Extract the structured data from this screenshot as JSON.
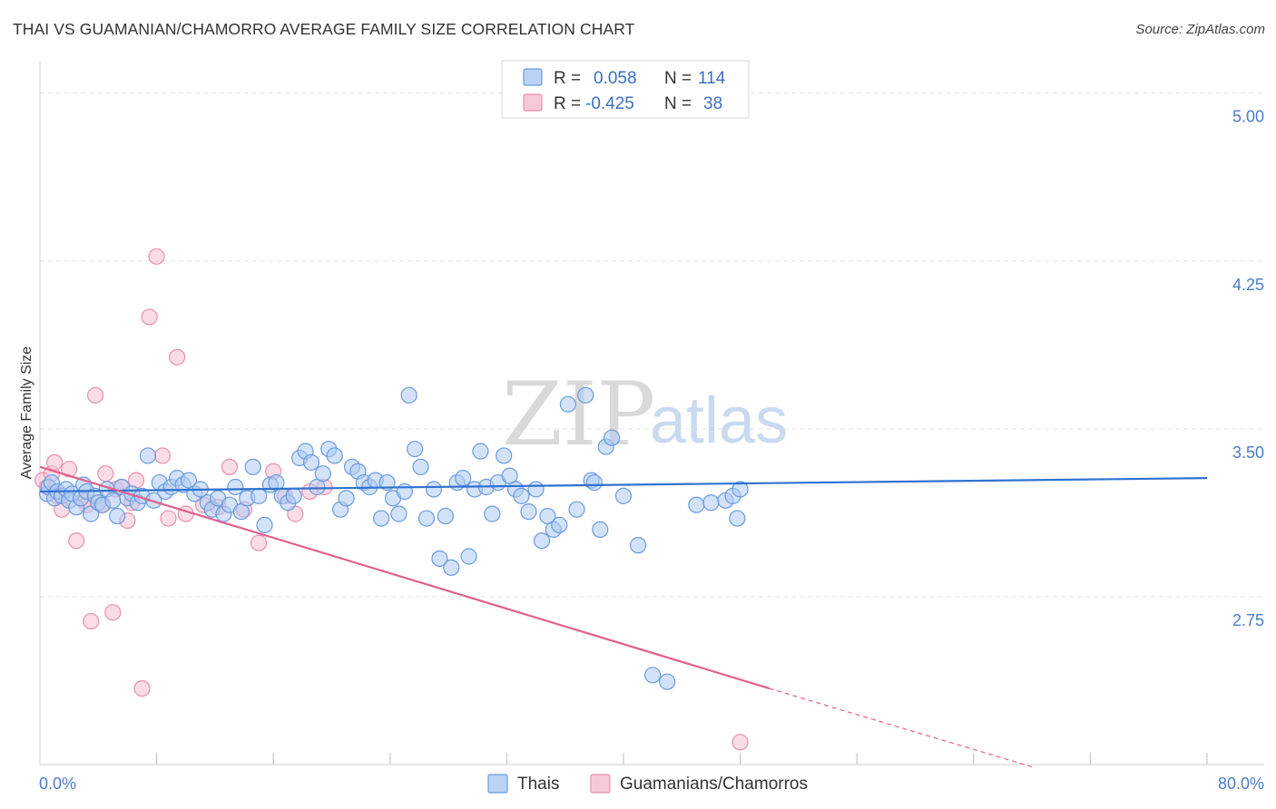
{
  "title": "THAI VS GUAMANIAN/CHAMORRO AVERAGE FAMILY SIZE CORRELATION CHART",
  "source": "Source: ZipAtlas.com",
  "watermark": {
    "zip": "ZIP",
    "atlas": "atlas"
  },
  "legend": {
    "r_label": "R =",
    "n_label": "N =",
    "thai_r": "0.058",
    "thai_n": "114",
    "guam_r": "-0.425",
    "guam_n": "38"
  },
  "bottom_legend": {
    "thai": "Thais",
    "guam": "Guamanians/Chamorros"
  },
  "colors": {
    "thai_fill": "#aecbf2",
    "thai_stroke": "#6a9be0",
    "thai_line": "#2f72d0",
    "guam_fill": "#f6c0d1",
    "guam_stroke": "#ea8fae",
    "guam_line": "#e0608e",
    "grid": "#e3e3e3",
    "tick_label": "#4a7cc9"
  },
  "chart_data": {
    "type": "scatter",
    "title": "THAI VS GUAMANIAN/CHAMORRO AVERAGE FAMILY SIZE CORRELATION CHART",
    "xlabel": "",
    "ylabel": "Average Family Size",
    "xlim": [
      0,
      80
    ],
    "ylim": [
      2.0,
      5.1
    ],
    "x_tick_labels": [
      "0.0%",
      "80.0%"
    ],
    "y_ticks": [
      2.75,
      3.5,
      4.25,
      5.0
    ],
    "y_tick_labels": [
      "2.75",
      "3.50",
      "4.25",
      "5.00"
    ],
    "series": [
      {
        "name": "Thais",
        "r": 0.058,
        "n": 114,
        "trend": {
          "x": [
            0,
            80
          ],
          "y": [
            3.22,
            3.28
          ]
        },
        "points": [
          [
            0.5,
            3.21
          ],
          [
            0.6,
            3.24
          ],
          [
            0.8,
            3.26
          ],
          [
            1.0,
            3.19
          ],
          [
            1.2,
            3.22
          ],
          [
            1.5,
            3.2
          ],
          [
            1.8,
            3.23
          ],
          [
            2.0,
            3.18
          ],
          [
            2.2,
            3.21
          ],
          [
            2.5,
            3.15
          ],
          [
            2.8,
            3.19
          ],
          [
            3.0,
            3.25
          ],
          [
            3.2,
            3.22
          ],
          [
            3.5,
            3.12
          ],
          [
            3.8,
            3.2
          ],
          [
            4.0,
            3.17
          ],
          [
            4.3,
            3.16
          ],
          [
            4.6,
            3.23
          ],
          [
            5.0,
            3.18
          ],
          [
            5.3,
            3.11
          ],
          [
            5.6,
            3.24
          ],
          [
            6.0,
            3.19
          ],
          [
            6.3,
            3.21
          ],
          [
            6.7,
            3.17
          ],
          [
            7.0,
            3.2
          ],
          [
            7.4,
            3.38
          ],
          [
            7.8,
            3.18
          ],
          [
            8.2,
            3.26
          ],
          [
            8.6,
            3.22
          ],
          [
            9.0,
            3.24
          ],
          [
            9.4,
            3.28
          ],
          [
            9.8,
            3.25
          ],
          [
            10.2,
            3.27
          ],
          [
            10.6,
            3.21
          ],
          [
            11.0,
            3.23
          ],
          [
            11.5,
            3.17
          ],
          [
            11.8,
            3.14
          ],
          [
            12.2,
            3.19
          ],
          [
            12.6,
            3.12
          ],
          [
            13.0,
            3.16
          ],
          [
            13.4,
            3.24
          ],
          [
            13.8,
            3.13
          ],
          [
            14.2,
            3.19
          ],
          [
            14.6,
            3.33
          ],
          [
            15.0,
            3.2
          ],
          [
            15.4,
            3.07
          ],
          [
            15.8,
            3.25
          ],
          [
            16.2,
            3.26
          ],
          [
            16.6,
            3.2
          ],
          [
            17.0,
            3.17
          ],
          [
            17.4,
            3.2
          ],
          [
            17.8,
            3.37
          ],
          [
            18.2,
            3.4
          ],
          [
            18.6,
            3.35
          ],
          [
            19.0,
            3.24
          ],
          [
            19.4,
            3.3
          ],
          [
            19.8,
            3.41
          ],
          [
            20.2,
            3.38
          ],
          [
            20.6,
            3.14
          ],
          [
            21.0,
            3.19
          ],
          [
            21.4,
            3.33
          ],
          [
            21.8,
            3.31
          ],
          [
            22.2,
            3.26
          ],
          [
            22.6,
            3.24
          ],
          [
            23.0,
            3.27
          ],
          [
            23.4,
            3.1
          ],
          [
            23.8,
            3.26
          ],
          [
            24.2,
            3.19
          ],
          [
            24.6,
            3.12
          ],
          [
            25.0,
            3.22
          ],
          [
            25.3,
            3.65
          ],
          [
            25.7,
            3.41
          ],
          [
            26.1,
            3.33
          ],
          [
            26.5,
            3.1
          ],
          [
            27.0,
            3.23
          ],
          [
            27.4,
            2.92
          ],
          [
            27.8,
            3.11
          ],
          [
            28.2,
            2.88
          ],
          [
            28.6,
            3.26
          ],
          [
            29.0,
            3.28
          ],
          [
            29.4,
            2.93
          ],
          [
            29.8,
            3.23
          ],
          [
            30.2,
            3.4
          ],
          [
            30.6,
            3.24
          ],
          [
            31.0,
            3.12
          ],
          [
            31.4,
            3.26
          ],
          [
            31.8,
            3.38
          ],
          [
            32.2,
            3.29
          ],
          [
            32.6,
            3.23
          ],
          [
            33.0,
            3.2
          ],
          [
            33.5,
            3.13
          ],
          [
            34.0,
            3.23
          ],
          [
            34.4,
            3.0
          ],
          [
            34.8,
            3.11
          ],
          [
            35.2,
            3.05
          ],
          [
            35.6,
            3.07
          ],
          [
            36.2,
            3.61
          ],
          [
            36.8,
            3.14
          ],
          [
            37.4,
            3.65
          ],
          [
            37.8,
            3.27
          ],
          [
            38.0,
            3.26
          ],
          [
            38.4,
            3.05
          ],
          [
            38.8,
            3.42
          ],
          [
            39.2,
            3.46
          ],
          [
            40.0,
            3.2
          ],
          [
            41.0,
            2.98
          ],
          [
            42.0,
            2.4
          ],
          [
            43.0,
            2.37
          ],
          [
            45.0,
            3.16
          ],
          [
            46.0,
            3.17
          ],
          [
            47.0,
            3.18
          ],
          [
            47.5,
            3.2
          ],
          [
            47.8,
            3.1
          ],
          [
            48.0,
            3.23
          ]
        ]
      },
      {
        "name": "Guamanians/Chamorros",
        "r": -0.425,
        "n": 38,
        "trend": {
          "x": [
            0,
            50
          ],
          "y": [
            3.33,
            2.34
          ],
          "dashed_to": {
            "x": 68,
            "y": 1.99
          }
        },
        "points": [
          [
            0.2,
            3.27
          ],
          [
            0.5,
            3.24
          ],
          [
            0.8,
            3.3
          ],
          [
            1.0,
            3.35
          ],
          [
            1.2,
            3.2
          ],
          [
            1.5,
            3.14
          ],
          [
            2.0,
            3.32
          ],
          [
            2.5,
            3.0
          ],
          [
            3.0,
            3.18
          ],
          [
            3.2,
            3.16
          ],
          [
            3.5,
            2.64
          ],
          [
            3.8,
            3.65
          ],
          [
            4.2,
            3.16
          ],
          [
            4.5,
            3.3
          ],
          [
            5.0,
            2.68
          ],
          [
            5.2,
            3.23
          ],
          [
            5.6,
            3.24
          ],
          [
            6.0,
            3.09
          ],
          [
            6.3,
            3.17
          ],
          [
            6.6,
            3.27
          ],
          [
            7.0,
            2.34
          ],
          [
            7.5,
            4.0
          ],
          [
            8.0,
            4.27
          ],
          [
            8.4,
            3.38
          ],
          [
            8.8,
            3.1
          ],
          [
            9.4,
            3.82
          ],
          [
            10.0,
            3.12
          ],
          [
            11.2,
            3.16
          ],
          [
            12.2,
            3.15
          ],
          [
            13.0,
            3.33
          ],
          [
            14.0,
            3.14
          ],
          [
            15.0,
            2.99
          ],
          [
            16.0,
            3.31
          ],
          [
            16.8,
            3.2
          ],
          [
            17.5,
            3.12
          ],
          [
            18.5,
            3.22
          ],
          [
            19.5,
            3.24
          ],
          [
            48.0,
            2.1
          ]
        ]
      }
    ]
  }
}
